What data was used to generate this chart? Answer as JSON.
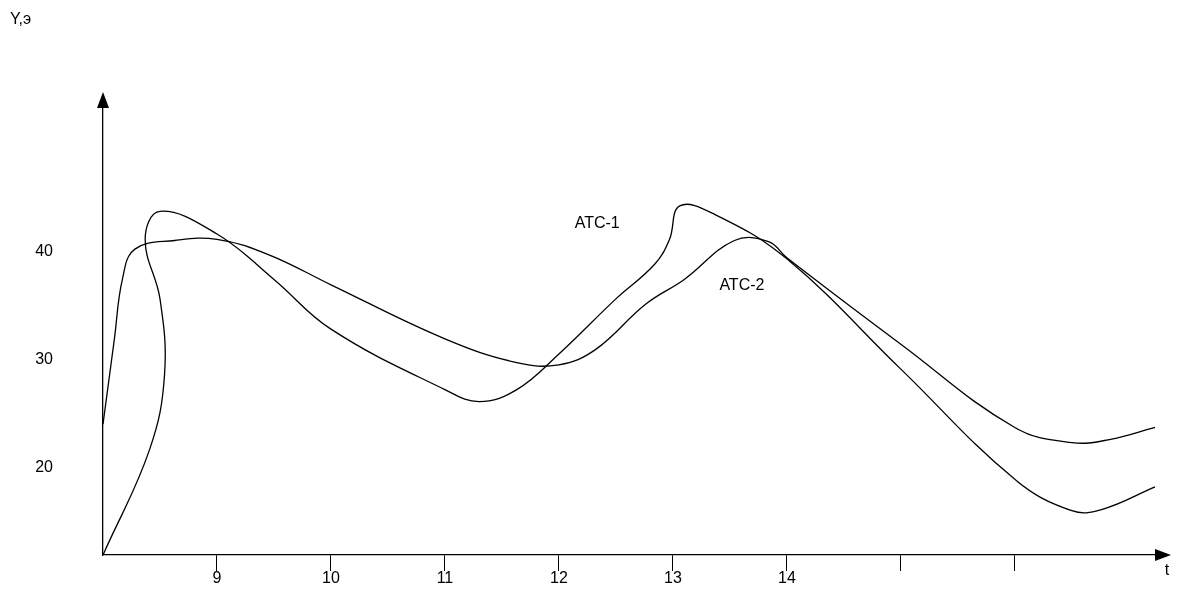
{
  "chart_data": {
    "type": "line",
    "xlabel": "t",
    "ylabel": "Y,э",
    "xlim": [
      8,
      17.3
    ],
    "ylim": [
      11.9,
      54
    ],
    "xticks": [
      9,
      10,
      11,
      12,
      13,
      14,
      {
        "value": 15,
        "label": null
      },
      {
        "value": 16,
        "label": null
      }
    ],
    "yticks": [
      20,
      30,
      40
    ],
    "grid": false,
    "legend": false,
    "marker": "none",
    "line_style": "solid",
    "series": [
      {
        "name": "АТС-1",
        "color": "#000000",
        "x": [
          8.0,
          8.41,
          8.54,
          8.5,
          8.37,
          8.5,
          9.0,
          9.5,
          10.0,
          11.0,
          11.3,
          11.63,
          12.0,
          12.5,
          12.84,
          12.97,
          13.06,
          13.37,
          14.0,
          15.0,
          16.0,
          16.5,
          16.76,
          17.23
        ],
        "values": [
          11.9,
          21.7,
          28.6,
          35.6,
          41.1,
          43.7,
          41.6,
          37.4,
          32.8,
          27.2,
          26.1,
          27.2,
          30.5,
          35.6,
          38.8,
          41.1,
          44.2,
          43.4,
          39.3,
          29.1,
          18.9,
          16.0,
          16.1,
          18.2
        ]
      },
      {
        "name": "АТС-2",
        "color": "#000000",
        "x": [
          8.0,
          8.1,
          8.17,
          8.28,
          8.63,
          9.0,
          9.45,
          10.0,
          11.0,
          11.63,
          12.0,
          12.32,
          12.76,
          13.1,
          13.54,
          13.84,
          14.0,
          15.0,
          16.0,
          16.5,
          16.84,
          17.23
        ],
        "values": [
          24.0,
          31.9,
          37.4,
          40.2,
          41.0,
          41.1,
          39.7,
          36.9,
          31.9,
          29.7,
          29.5,
          30.9,
          35.1,
          37.4,
          41.0,
          40.9,
          39.4,
          31.4,
          23.7,
          22.3,
          22.6,
          23.7
        ]
      }
    ]
  }
}
